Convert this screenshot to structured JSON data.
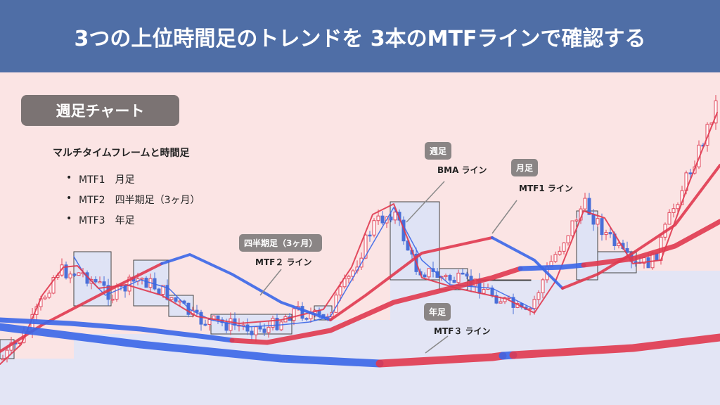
{
  "header": {
    "title": "3つの上位時間足のトレンドを 3本のMTFラインで確認する"
  },
  "badge": "週足チャート",
  "legend": {
    "heading": "マルチタイムフレームと時間足",
    "items": [
      "MTF1　月足",
      "MTF2　四半期足（3ヶ月）",
      "MTF3　年足"
    ]
  },
  "callouts": [
    {
      "tag": "週足",
      "label": "BMA ライン"
    },
    {
      "tag": "月足",
      "label": "MTF1 ライン"
    },
    {
      "tag": "四半期足（3ヶ月）",
      "label": "MTF２ ライン"
    },
    {
      "tag": "年足",
      "label": "MTF３ ライン"
    }
  ]
}
